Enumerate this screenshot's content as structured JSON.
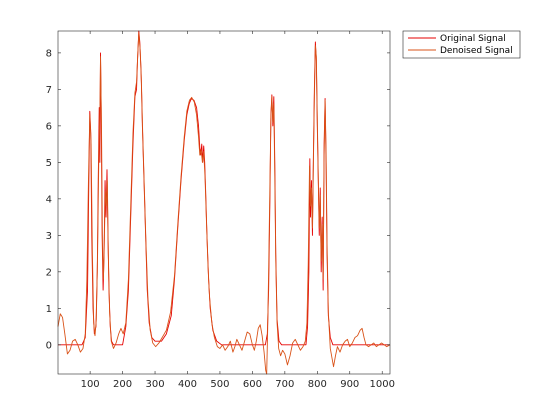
{
  "chart_data": {
    "type": "line",
    "title": "",
    "xlabel": "",
    "ylabel": "",
    "xlim": [
      1,
      1024
    ],
    "ylim": [
      -0.8,
      8.6
    ],
    "grid": false,
    "legend_position": "outside-top-right",
    "x_ticks": [
      100,
      200,
      300,
      400,
      500,
      600,
      700,
      800,
      900,
      1000
    ],
    "y_ticks": [
      0,
      1,
      2,
      3,
      4,
      5,
      6,
      7,
      8
    ],
    "series": [
      {
        "name": "Original Signal",
        "color": "#e60000",
        "points": [
          [
            1,
            0
          ],
          [
            75,
            0
          ],
          [
            85,
            0.2
          ],
          [
            92,
            1.5
          ],
          [
            96,
            4.5
          ],
          [
            99,
            6.4
          ],
          [
            102,
            5.8
          ],
          [
            105,
            3.0
          ],
          [
            109,
            1.0
          ],
          [
            113,
            0.3
          ],
          [
            118,
            0.5
          ],
          [
            122,
            2.0
          ],
          [
            125,
            4.5
          ],
          [
            128,
            6.5
          ],
          [
            130,
            5.0
          ],
          [
            132,
            8.0
          ],
          [
            134,
            6.5
          ],
          [
            137,
            3.0
          ],
          [
            140,
            1.5
          ],
          [
            143,
            2.5
          ],
          [
            146,
            4.5
          ],
          [
            149,
            3.5
          ],
          [
            152,
            4.8
          ],
          [
            155,
            3.0
          ],
          [
            158,
            1.5
          ],
          [
            162,
            0.5
          ],
          [
            166,
            0.1
          ],
          [
            172,
            0
          ],
          [
            200,
            0
          ],
          [
            210,
            0.5
          ],
          [
            218,
            1.5
          ],
          [
            225,
            3.5
          ],
          [
            232,
            5.5
          ],
          [
            238,
            6.8
          ],
          [
            243,
            7.0
          ],
          [
            246,
            7.8
          ],
          [
            250,
            8.6
          ],
          [
            253,
            8.3
          ],
          [
            257,
            7.5
          ],
          [
            261,
            6.0
          ],
          [
            266,
            4.5
          ],
          [
            271,
            3.0
          ],
          [
            276,
            1.5
          ],
          [
            282,
            0.6
          ],
          [
            290,
            0.2
          ],
          [
            300,
            0.1
          ],
          [
            320,
            0.1
          ],
          [
            335,
            0.3
          ],
          [
            350,
            0.8
          ],
          [
            360,
            1.8
          ],
          [
            370,
            3.2
          ],
          [
            380,
            4.5
          ],
          [
            390,
            5.6
          ],
          [
            398,
            6.3
          ],
          [
            405,
            6.6
          ],
          [
            412,
            6.75
          ],
          [
            420,
            6.7
          ],
          [
            428,
            6.5
          ],
          [
            434,
            6.0
          ],
          [
            438,
            5.4
          ],
          [
            441,
            5.2
          ],
          [
            444,
            5.5
          ],
          [
            447,
            5.0
          ],
          [
            450,
            5.45
          ],
          [
            453,
            5.0
          ],
          [
            456,
            4.2
          ],
          [
            460,
            3.0
          ],
          [
            465,
            1.8
          ],
          [
            470,
            1.0
          ],
          [
            478,
            0.4
          ],
          [
            490,
            0.1
          ],
          [
            505,
            0
          ],
          [
            640,
            0
          ],
          [
            646,
            0.3
          ],
          [
            650,
            1.5
          ],
          [
            654,
            4.0
          ],
          [
            657,
            6.3
          ],
          [
            660,
            6.85
          ],
          [
            663,
            6.0
          ],
          [
            666,
            6.8
          ],
          [
            669,
            5.0
          ],
          [
            672,
            2.5
          ],
          [
            676,
            0.7
          ],
          [
            682,
            0.1
          ],
          [
            690,
            0
          ],
          [
            765,
            0
          ],
          [
            770,
            0.5
          ],
          [
            774,
            2.0
          ],
          [
            777,
            5.1
          ],
          [
            779,
            3.5
          ],
          [
            782,
            4.5
          ],
          [
            785,
            3.0
          ],
          [
            788,
            5.2
          ],
          [
            791,
            7.0
          ],
          [
            794,
            8.3
          ],
          [
            797,
            7.8
          ],
          [
            800,
            6.0
          ],
          [
            803,
            4.5
          ],
          [
            806,
            3.0
          ],
          [
            809,
            4.3
          ],
          [
            812,
            2.0
          ],
          [
            815,
            3.5
          ],
          [
            818,
            1.5
          ],
          [
            821,
            5.5
          ],
          [
            824,
            6.75
          ],
          [
            827,
            5.0
          ],
          [
            830,
            2.5
          ],
          [
            834,
            0.8
          ],
          [
            840,
            0.2
          ],
          [
            848,
            0
          ],
          [
            1024,
            0
          ]
        ]
      },
      {
        "name": "Denoised Signal",
        "color": "#d95319",
        "points": [
          [
            1,
            0.5
          ],
          [
            8,
            0.85
          ],
          [
            15,
            0.75
          ],
          [
            22,
            0.3
          ],
          [
            30,
            -0.25
          ],
          [
            38,
            -0.15
          ],
          [
            46,
            0.1
          ],
          [
            54,
            0.15
          ],
          [
            62,
            0.0
          ],
          [
            70,
            -0.2
          ],
          [
            78,
            -0.1
          ],
          [
            85,
            0.3
          ],
          [
            90,
            1.8
          ],
          [
            95,
            4.6
          ],
          [
            99,
            6.3
          ],
          [
            103,
            5.5
          ],
          [
            107,
            2.5
          ],
          [
            111,
            0.6
          ],
          [
            115,
            0.25
          ],
          [
            119,
            0.7
          ],
          [
            123,
            2.5
          ],
          [
            127,
            5.3
          ],
          [
            130,
            6.3
          ],
          [
            132,
            7.9
          ],
          [
            135,
            6.0
          ],
          [
            138,
            2.8
          ],
          [
            141,
            1.8
          ],
          [
            144,
            3.0
          ],
          [
            147,
            4.2
          ],
          [
            150,
            3.8
          ],
          [
            153,
            4.5
          ],
          [
            156,
            2.5
          ],
          [
            160,
            0.9
          ],
          [
            165,
            0.1
          ],
          [
            172,
            -0.1
          ],
          [
            180,
            0.05
          ],
          [
            188,
            0.3
          ],
          [
            195,
            0.45
          ],
          [
            202,
            0.3
          ],
          [
            210,
            0.6
          ],
          [
            218,
            1.8
          ],
          [
            225,
            3.8
          ],
          [
            232,
            5.8
          ],
          [
            238,
            6.9
          ],
          [
            243,
            7.2
          ],
          [
            247,
            8.0
          ],
          [
            250,
            8.55
          ],
          [
            254,
            8.1
          ],
          [
            258,
            7.2
          ],
          [
            262,
            5.8
          ],
          [
            267,
            4.3
          ],
          [
            272,
            2.8
          ],
          [
            278,
            1.3
          ],
          [
            285,
            0.4
          ],
          [
            293,
            0.05
          ],
          [
            302,
            -0.05
          ],
          [
            312,
            0.05
          ],
          [
            322,
            0.2
          ],
          [
            335,
            0.4
          ],
          [
            348,
            0.9
          ],
          [
            360,
            1.9
          ],
          [
            370,
            3.3
          ],
          [
            380,
            4.6
          ],
          [
            390,
            5.7
          ],
          [
            398,
            6.4
          ],
          [
            406,
            6.7
          ],
          [
            413,
            6.78
          ],
          [
            421,
            6.65
          ],
          [
            428,
            6.3
          ],
          [
            434,
            5.7
          ],
          [
            438,
            5.2
          ],
          [
            442,
            5.35
          ],
          [
            446,
            5.0
          ],
          [
            450,
            5.3
          ],
          [
            454,
            4.6
          ],
          [
            458,
            3.5
          ],
          [
            463,
            2.2
          ],
          [
            468,
            1.3
          ],
          [
            475,
            0.6
          ],
          [
            483,
            0.2
          ],
          [
            492,
            -0.05
          ],
          [
            500,
            -0.1
          ],
          [
            508,
            0.0
          ],
          [
            516,
            -0.15
          ],
          [
            524,
            -0.05
          ],
          [
            532,
            0.1
          ],
          [
            540,
            -0.2
          ],
          [
            546,
            -0.05
          ],
          [
            552,
            0.15
          ],
          [
            560,
            0.0
          ],
          [
            568,
            -0.15
          ],
          [
            576,
            0.1
          ],
          [
            584,
            0.35
          ],
          [
            592,
            0.3
          ],
          [
            600,
            0.0
          ],
          [
            606,
            -0.15
          ],
          [
            612,
            0.1
          ],
          [
            618,
            0.45
          ],
          [
            624,
            0.55
          ],
          [
            630,
            0.25
          ],
          [
            636,
            -0.2
          ],
          [
            641,
            -0.7
          ],
          [
            644,
            -0.8
          ],
          [
            647,
            0.4
          ],
          [
            650,
            2.0
          ],
          [
            654,
            4.4
          ],
          [
            657,
            6.2
          ],
          [
            660,
            6.8
          ],
          [
            663,
            6.1
          ],
          [
            666,
            6.6
          ],
          [
            669,
            4.6
          ],
          [
            672,
            2.3
          ],
          [
            676,
            0.6
          ],
          [
            681,
            -0.1
          ],
          [
            687,
            -0.3
          ],
          [
            693,
            -0.15
          ],
          [
            700,
            -0.25
          ],
          [
            708,
            -0.55
          ],
          [
            716,
            -0.3
          ],
          [
            724,
            0.05
          ],
          [
            732,
            0.15
          ],
          [
            740,
            0.0
          ],
          [
            748,
            -0.15
          ],
          [
            756,
            -0.05
          ],
          [
            763,
            0.1
          ],
          [
            768,
            0.6
          ],
          [
            772,
            2.2
          ],
          [
            776,
            4.9
          ],
          [
            779,
            3.8
          ],
          [
            782,
            4.3
          ],
          [
            785,
            3.2
          ],
          [
            788,
            5.0
          ],
          [
            791,
            6.8
          ],
          [
            794,
            8.2
          ],
          [
            797,
            7.9
          ],
          [
            800,
            6.2
          ],
          [
            803,
            4.6
          ],
          [
            806,
            3.2
          ],
          [
            809,
            4.1
          ],
          [
            812,
            2.3
          ],
          [
            815,
            3.3
          ],
          [
            818,
            1.8
          ],
          [
            821,
            5.2
          ],
          [
            824,
            6.7
          ],
          [
            827,
            5.3
          ],
          [
            830,
            2.8
          ],
          [
            834,
            0.9
          ],
          [
            840,
            -0.1
          ],
          [
            845,
            -0.35
          ],
          [
            850,
            -0.6
          ],
          [
            856,
            -0.3
          ],
          [
            862,
            -0.05
          ],
          [
            870,
            -0.2
          ],
          [
            878,
            0.0
          ],
          [
            886,
            0.1
          ],
          [
            893,
            0.15
          ],
          [
            900,
            -0.05
          ],
          [
            908,
            0.05
          ],
          [
            916,
            0.2
          ],
          [
            924,
            0.25
          ],
          [
            932,
            0.4
          ],
          [
            938,
            0.45
          ],
          [
            944,
            0.2
          ],
          [
            950,
            0.0
          ],
          [
            958,
            -0.05
          ],
          [
            966,
            0.0
          ],
          [
            974,
            0.05
          ],
          [
            982,
            -0.05
          ],
          [
            990,
            0.0
          ],
          [
            998,
            0.05
          ],
          [
            1006,
            0.0
          ],
          [
            1014,
            -0.05
          ],
          [
            1024,
            0.0
          ]
        ]
      }
    ]
  }
}
